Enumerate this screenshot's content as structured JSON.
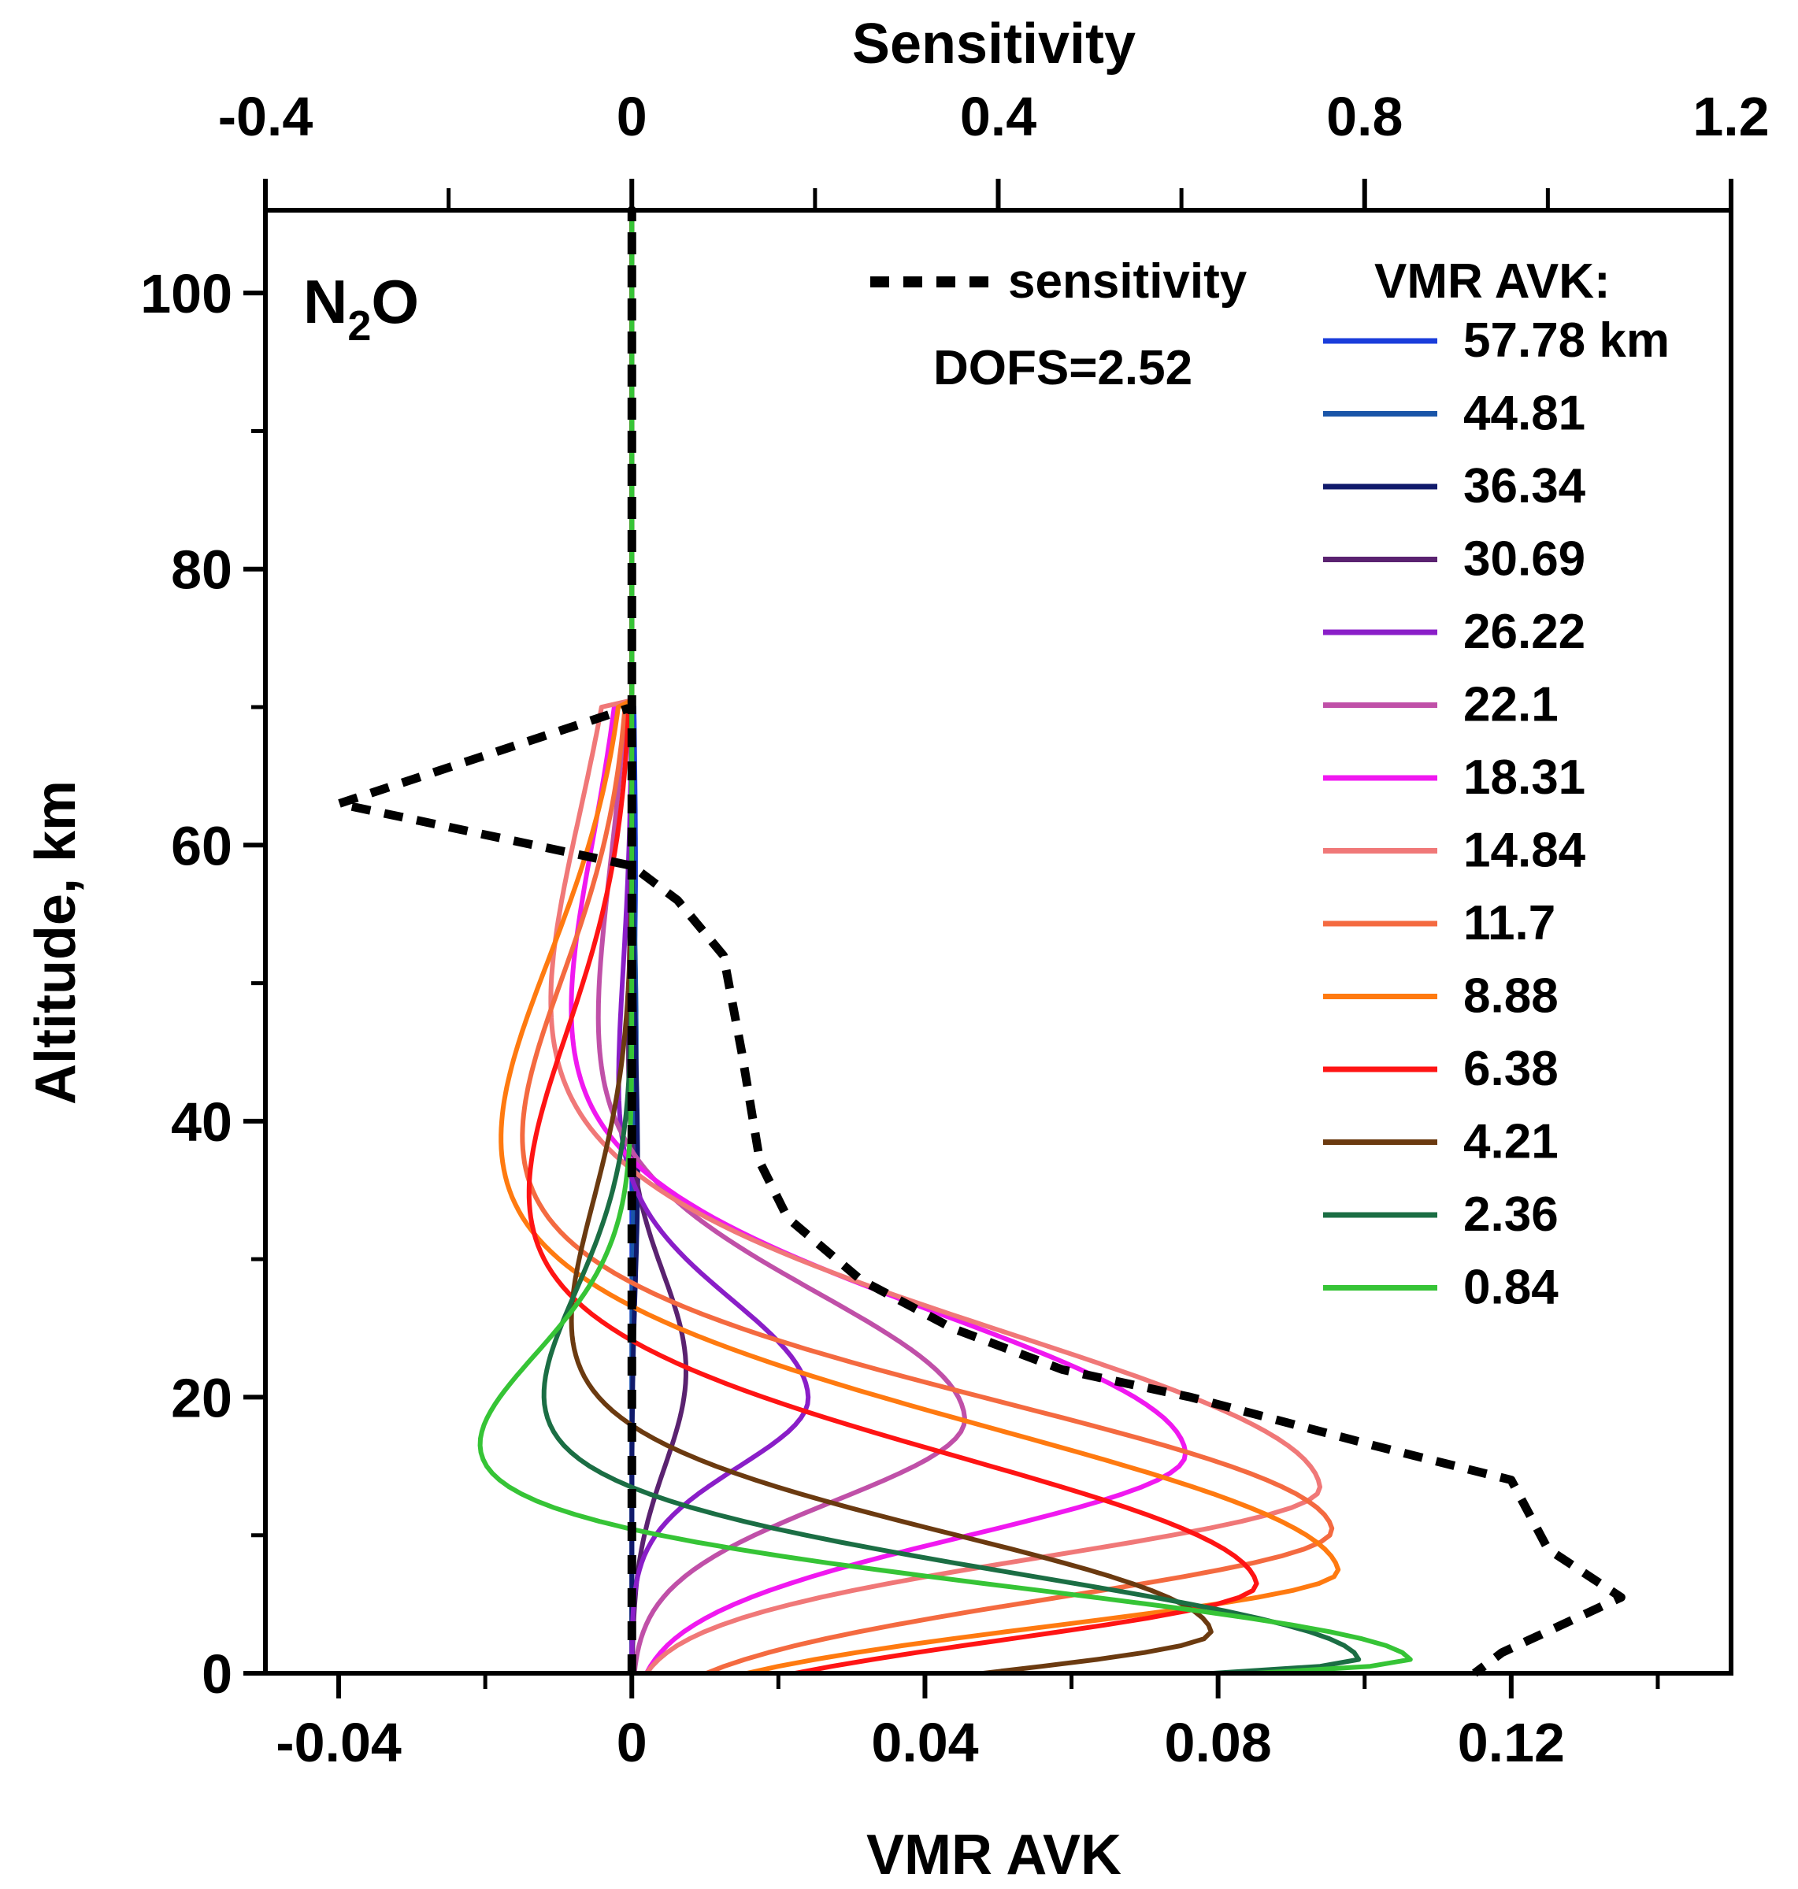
{
  "chart_data": {
    "type": "line",
    "species": {
      "main": "N",
      "sub": "2",
      "tail": "O"
    },
    "annotation": "DOFS=2.52",
    "ylabel": "Altitude, km",
    "xlabel_bottom": "VMR AVK",
    "xlabel_top": "Sensitivity",
    "ylim": [
      0,
      106
    ],
    "xlim_bottom": [
      -0.05,
      0.15
    ],
    "xlim_top": [
      -0.4,
      1.2
    ],
    "y_ticks": [
      "0",
      "20",
      "40",
      "60",
      "80",
      "100"
    ],
    "y_tick_values": [
      0,
      20,
      40,
      60,
      80,
      100
    ],
    "x_bottom_ticks": [
      "-0.04",
      "0",
      "0.04",
      "0.08",
      "0.12"
    ],
    "x_bottom_tick_values": [
      -0.04,
      0,
      0.04,
      0.08,
      0.12
    ],
    "x_top_ticks": [
      "-0.4",
      "0",
      "0.4",
      "0.8",
      "1.2"
    ],
    "x_top_tick_values": [
      -0.4,
      0,
      0.4,
      0.8,
      1.2
    ],
    "legend_title": "VMR AVK:",
    "sensitivity": {
      "name": "sensitivity",
      "color": "#000000",
      "style": "dashed",
      "points": [
        [
          0,
          0
        ],
        [
          0,
          106
        ],
        [
          0,
          70
        ],
        [
          -0.32,
          63
        ],
        [
          0,
          58.5
        ],
        [
          0.05,
          56
        ],
        [
          0.1,
          52
        ],
        [
          0.12,
          45
        ],
        [
          0.14,
          37
        ],
        [
          0.17,
          33
        ],
        [
          0.25,
          28.5
        ],
        [
          0.35,
          25
        ],
        [
          0.47,
          22
        ],
        [
          0.61,
          20
        ],
        [
          0.81,
          16.5
        ],
        [
          0.96,
          14
        ],
        [
          1.0,
          9
        ],
        [
          1.08,
          5.5
        ],
        [
          0.95,
          1.5
        ],
        [
          0.92,
          0
        ]
      ]
    },
    "series": [
      {
        "name": "57.78 km",
        "color": "#1a3ddb",
        "peak_km": 57.78,
        "min": 0.0,
        "max": 0.0005,
        "w_lo": 8,
        "w_hi": 12
      },
      {
        "name": "44.81",
        "color": "#1a55a8",
        "peak_km": 44.81,
        "min": 0.0,
        "max": 0.0006,
        "w_lo": 8,
        "w_hi": 10
      },
      {
        "name": "36.34",
        "color": "#101a6b",
        "peak_km": 36.34,
        "min": 0.0,
        "max": 0.0008,
        "w_lo": 8,
        "w_hi": 10
      },
      {
        "name": "30.69",
        "color": "#5a2270",
        "peak_km": 22,
        "min": -0.0005,
        "max": 0.0075,
        "w_lo": 7,
        "w_hi": 7
      },
      {
        "name": "26.22",
        "color": "#8a1ec8",
        "peak_km": 20,
        "min": -0.002,
        "max": 0.0245,
        "w_lo": 5,
        "w_hi": 7
      },
      {
        "name": "22.1",
        "color": "#c050a8",
        "peak_km": 18.5,
        "min": -0.005,
        "max": 0.0465,
        "w_lo": 6,
        "w_hi": 9
      },
      {
        "name": "18.31",
        "color": "#f018f0",
        "peak_km": 16,
        "min": -0.009,
        "max": 0.0775,
        "w_lo": 6,
        "w_hi": 10
      },
      {
        "name": "14.84",
        "color": "#f07878",
        "peak_km": 13.5,
        "min": -0.012,
        "max": 0.0965,
        "w_lo": 5,
        "w_hi": 11
      },
      {
        "name": "11.7",
        "color": "#f46a40",
        "peak_km": 10.5,
        "min": -0.016,
        "max": 0.099,
        "w_lo": 5,
        "w_hi": 9
      },
      {
        "name": "8.88",
        "color": "#ff7a10",
        "peak_km": 7.5,
        "min": -0.019,
        "max": 0.1005,
        "w_lo": 4,
        "w_hi": 10
      },
      {
        "name": "6.38",
        "color": "#ff1414",
        "peak_km": 6.5,
        "min": -0.015,
        "max": 0.0885,
        "w_lo": 4,
        "w_hi": 9
      },
      {
        "name": "4.21",
        "color": "#6b3a10",
        "peak_km": 3,
        "min": -0.009,
        "max": 0.081,
        "w_lo": 3,
        "w_hi": 7
      },
      {
        "name": "2.36",
        "color": "#1b6e44",
        "peak_km": 1,
        "min": -0.013,
        "max": 0.102,
        "w_lo": 1.5,
        "w_hi": 6
      },
      {
        "name": "0.84",
        "color": "#36c436",
        "peak_km": 1,
        "min": -0.022,
        "max": 0.111,
        "w_lo": 1.5,
        "w_hi": 5
      }
    ],
    "grid": false,
    "legend_position": "top-right"
  }
}
